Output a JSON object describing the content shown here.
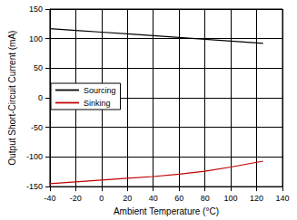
{
  "chart_data": {
    "type": "line",
    "x_label": "Ambient Temperature (°C)",
    "y_label": "Output Short-Circuit Current (mA)",
    "x": [
      -40,
      -20,
      0,
      20,
      40,
      60,
      80,
      100,
      125
    ],
    "series": [
      {
        "name": "Sourcing",
        "color": "#000000",
        "values": [
          117,
          114,
          111,
          108,
          105,
          102,
          99,
          96,
          92
        ]
      },
      {
        "name": "Sinking",
        "color": "#c00000",
        "values": [
          -145,
          -142,
          -139,
          -136,
          -133,
          -129,
          -124,
          -117,
          -107
        ]
      }
    ],
    "xlim": [
      -40,
      140
    ],
    "xticks": [
      -40,
      -20,
      0,
      20,
      40,
      60,
      80,
      100,
      120,
      140
    ],
    "ylim": [
      -150,
      150
    ],
    "yticks": [
      -150,
      -100,
      -50,
      0,
      50,
      100,
      150
    ],
    "grid": true,
    "legend": "center left"
  }
}
